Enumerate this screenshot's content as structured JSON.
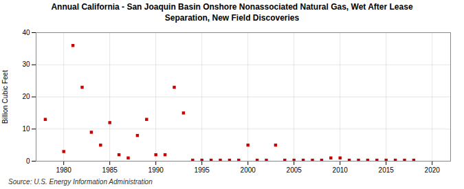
{
  "chart_data": {
    "type": "scatter",
    "title": "Annual California - San Joaquin Basin Onshore Nonassociated Natural Gas, Wet After Lease\nSeparation, New Field Discoveries",
    "ylabel": "Billion Cubic Feet",
    "source": "Source: U.S. Energy Information Administration",
    "x": [
      1978,
      1980,
      1981,
      1982,
      1983,
      1984,
      1985,
      1986,
      1987,
      1988,
      1989,
      1990,
      1991,
      1992,
      1993,
      1994,
      1995,
      1996,
      1997,
      1998,
      1999,
      2000,
      2001,
      2002,
      2003,
      2004,
      2005,
      2006,
      2007,
      2008,
      2009,
      2010,
      2011,
      2012,
      2013,
      2014,
      2015,
      2016,
      2017,
      2018
    ],
    "values": [
      13.0,
      3.0,
      36.0,
      23.0,
      9.0,
      5.0,
      12.0,
      2.0,
      1.0,
      8.0,
      13.0,
      2.0,
      2.0,
      23.0,
      15.0,
      0.3,
      0.3,
      0.3,
      0.3,
      0.3,
      0.3,
      5.0,
      0.3,
      0.3,
      5.0,
      0.3,
      0.3,
      0.3,
      0.3,
      0.3,
      1.0,
      1.0,
      0.3,
      0.3,
      0.3,
      0.3,
      0.3,
      0.3,
      0.3,
      0.3
    ],
    "color": "#cc0000",
    "marker": "square",
    "xlim": [
      1977,
      2022
    ],
    "ylim": [
      0,
      40
    ],
    "xticks": [
      1980,
      1985,
      1990,
      1995,
      2000,
      2005,
      2010,
      2015,
      2020
    ],
    "yticks": [
      0,
      10,
      20,
      30,
      40
    ],
    "grid": true
  }
}
